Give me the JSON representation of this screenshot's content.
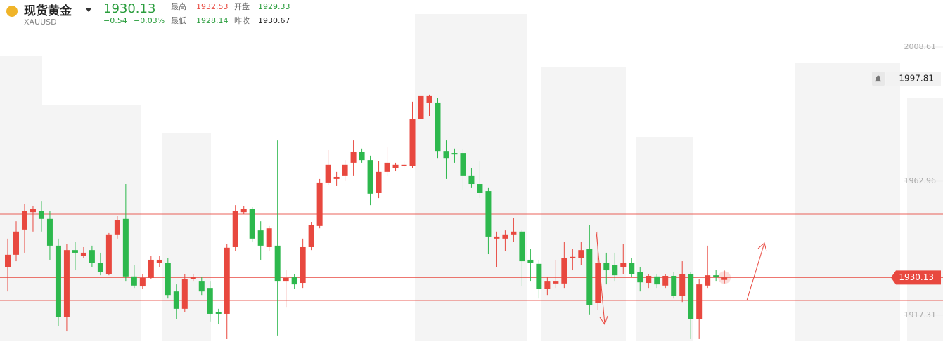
{
  "header": {
    "name": "现货黄金",
    "symbol": "XAUUSD",
    "price": "1930.13",
    "change": "−0.54",
    "change_pct": "−0.03%",
    "stats": [
      {
        "label": "最高",
        "value": "1932.53"
      },
      {
        "label": "开盘",
        "value": "1929.33"
      },
      {
        "label": "最低",
        "value": "1928.14"
      },
      {
        "label": "昨收",
        "value": "1930.67"
      }
    ]
  },
  "chart_data": {
    "type": "candlestick",
    "up_color": "#e8483f",
    "down_color": "#2db84d",
    "ylim": [
      1908.47,
      2024.62
    ],
    "yticks": [
      1917.31,
      1962.96,
      2008.61
    ],
    "hlines": [
      1951.73,
      1930.13,
      1922.33
    ],
    "alert_price": 1997.81,
    "last_price": 1930.13,
    "open": [
      1933.8,
      1937.9,
      1946.5,
      1952.4,
      1952.9,
      1950.1,
      1941.0,
      1916.6,
      1939.5,
      1937.6,
      1939.5,
      1935.2,
      1931.4,
      1944.6,
      1950.1,
      1930.5,
      1927.1,
      1930.0,
      1935.0,
      1935.0,
      1925.4,
      1919.5,
      1929.5,
      1929.0,
      1926.6,
      1918.3,
      1917.8,
      1940.5,
      1952.4,
      1953.4,
      1946.2,
      1940.5,
      1941.0,
      1929.0,
      1930.2,
      1928.3,
      1940.5,
      1947.7,
      1962.5,
      1963.7,
      1964.9,
      1969.2,
      1973.0,
      1970.1,
      1958.9,
      1966.1,
      1967.3,
      1968.2,
      1968.2,
      1984.0,
      1989.5,
      1989.5,
      1973.2,
      1972.5,
      1972.5,
      1964.9,
      1962.0,
      1959.6,
      1943.4,
      1943.4,
      1944.6,
      1945.8,
      1936.2,
      1934.8,
      1926.2,
      1928.1,
      1928.1,
      1936.7,
      1936.7,
      1939.8,
      1921.4,
      1935.0,
      1934.3,
      1933.8,
      1935.0,
      1931.9,
      1928.3,
      1930.5,
      1927.4,
      1930.7,
      1923.8,
      1931.4,
      1915.9,
      1927.4,
      1930.9,
      1929.33
    ],
    "high": [
      1943.4,
      1949.3,
      1955.3,
      1954.6,
      1956.0,
      1952.9,
      1943.4,
      1941.5,
      1942.2,
      1940.5,
      1941.0,
      1938.6,
      1945.3,
      1951.0,
      1962.0,
      1934.3,
      1931.4,
      1937.4,
      1937.4,
      1936.7,
      1927.8,
      1931.4,
      1931.4,
      1930.2,
      1929.0,
      1919.5,
      1941.5,
      1954.8,
      1954.6,
      1954.1,
      1949.3,
      1947.7,
      1976.8,
      1932.6,
      1931.4,
      1943.4,
      1949.1,
      1963.7,
      1973.7,
      1966.1,
      1970.1,
      1976.8,
      1974.0,
      1971.6,
      1969.7,
      1974.4,
      1969.2,
      1969.7,
      1990.0,
      1992.8,
      1992.4,
      1991.2,
      1976.8,
      1974.0,
      1974.0,
      1967.3,
      1969.7,
      1960.6,
      1945.8,
      1946.2,
      1950.5,
      1946.2,
      1939.8,
      1936.2,
      1930.2,
      1936.2,
      1942.2,
      1939.8,
      1942.4,
      1948.1,
      1945.8,
      1938.6,
      1938.6,
      1941.5,
      1936.7,
      1933.8,
      1931.4,
      1931.4,
      1931.4,
      1931.9,
      1935.7,
      1931.9,
      1929.5,
      1941.0,
      1932.8,
      1932.53
    ],
    "low": [
      1925.4,
      1935.7,
      1938.6,
      1945.8,
      1945.8,
      1936.2,
      1913.5,
      1911.8,
      1932.6,
      1936.7,
      1933.8,
      1930.9,
      1930.9,
      1943.4,
      1929.0,
      1926.6,
      1926.2,
      1929.5,
      1933.8,
      1923.0,
      1915.9,
      1918.3,
      1929.0,
      1924.2,
      1915.2,
      1914.2,
      1909.2,
      1939.1,
      1951.7,
      1942.2,
      1936.2,
      1939.1,
      1910.4,
      1919.9,
      1926.2,
      1926.6,
      1939.5,
      1946.9,
      1961.8,
      1961.3,
      1963.0,
      1964.9,
      1969.2,
      1954.8,
      1957.2,
      1964.9,
      1966.3,
      1967.3,
      1967.3,
      1982.8,
      1985.2,
      1970.8,
      1963.7,
      1969.2,
      1960.1,
      1960.6,
      1957.2,
      1938.1,
      1933.8,
      1939.1,
      1942.2,
      1927.1,
      1929.0,
      1923.0,
      1924.2,
      1926.6,
      1926.6,
      1932.6,
      1934.3,
      1917.6,
      1919.0,
      1927.8,
      1929.0,
      1931.4,
      1930.2,
      1925.4,
      1926.6,
      1926.6,
      1926.6,
      1923.0,
      1921.8,
      1909.2,
      1909.2,
      1926.6,
      1929.0,
      1928.14
    ],
    "close": [
      1937.9,
      1945.8,
      1952.9,
      1953.4,
      1950.1,
      1941.0,
      1916.6,
      1939.5,
      1938.6,
      1938.6,
      1935.0,
      1931.9,
      1944.6,
      1949.8,
      1930.5,
      1927.4,
      1930.0,
      1936.2,
      1936.2,
      1924.2,
      1919.5,
      1929.5,
      1930.2,
      1925.4,
      1917.8,
      1917.8,
      1940.3,
      1952.9,
      1953.6,
      1943.4,
      1941.0,
      1946.9,
      1929.0,
      1930.0,
      1927.8,
      1940.5,
      1948.1,
      1962.5,
      1968.5,
      1964.4,
      1968.5,
      1973.0,
      1970.1,
      1958.7,
      1966.1,
      1969.2,
      1968.5,
      1968.5,
      1984.0,
      1991.9,
      1991.9,
      1973.2,
      1970.8,
      1972.0,
      1964.9,
      1962.0,
      1958.9,
      1944.1,
      1944.1,
      1944.6,
      1945.8,
      1935.7,
      1935.0,
      1926.2,
      1929.0,
      1929.0,
      1936.7,
      1937.2,
      1939.5,
      1920.7,
      1935.0,
      1932.6,
      1930.9,
      1935.0,
      1931.4,
      1928.5,
      1930.7,
      1927.8,
      1930.7,
      1923.8,
      1931.4,
      1915.9,
      1927.8,
      1930.9,
      1930.2,
      1930.13
    ]
  }
}
